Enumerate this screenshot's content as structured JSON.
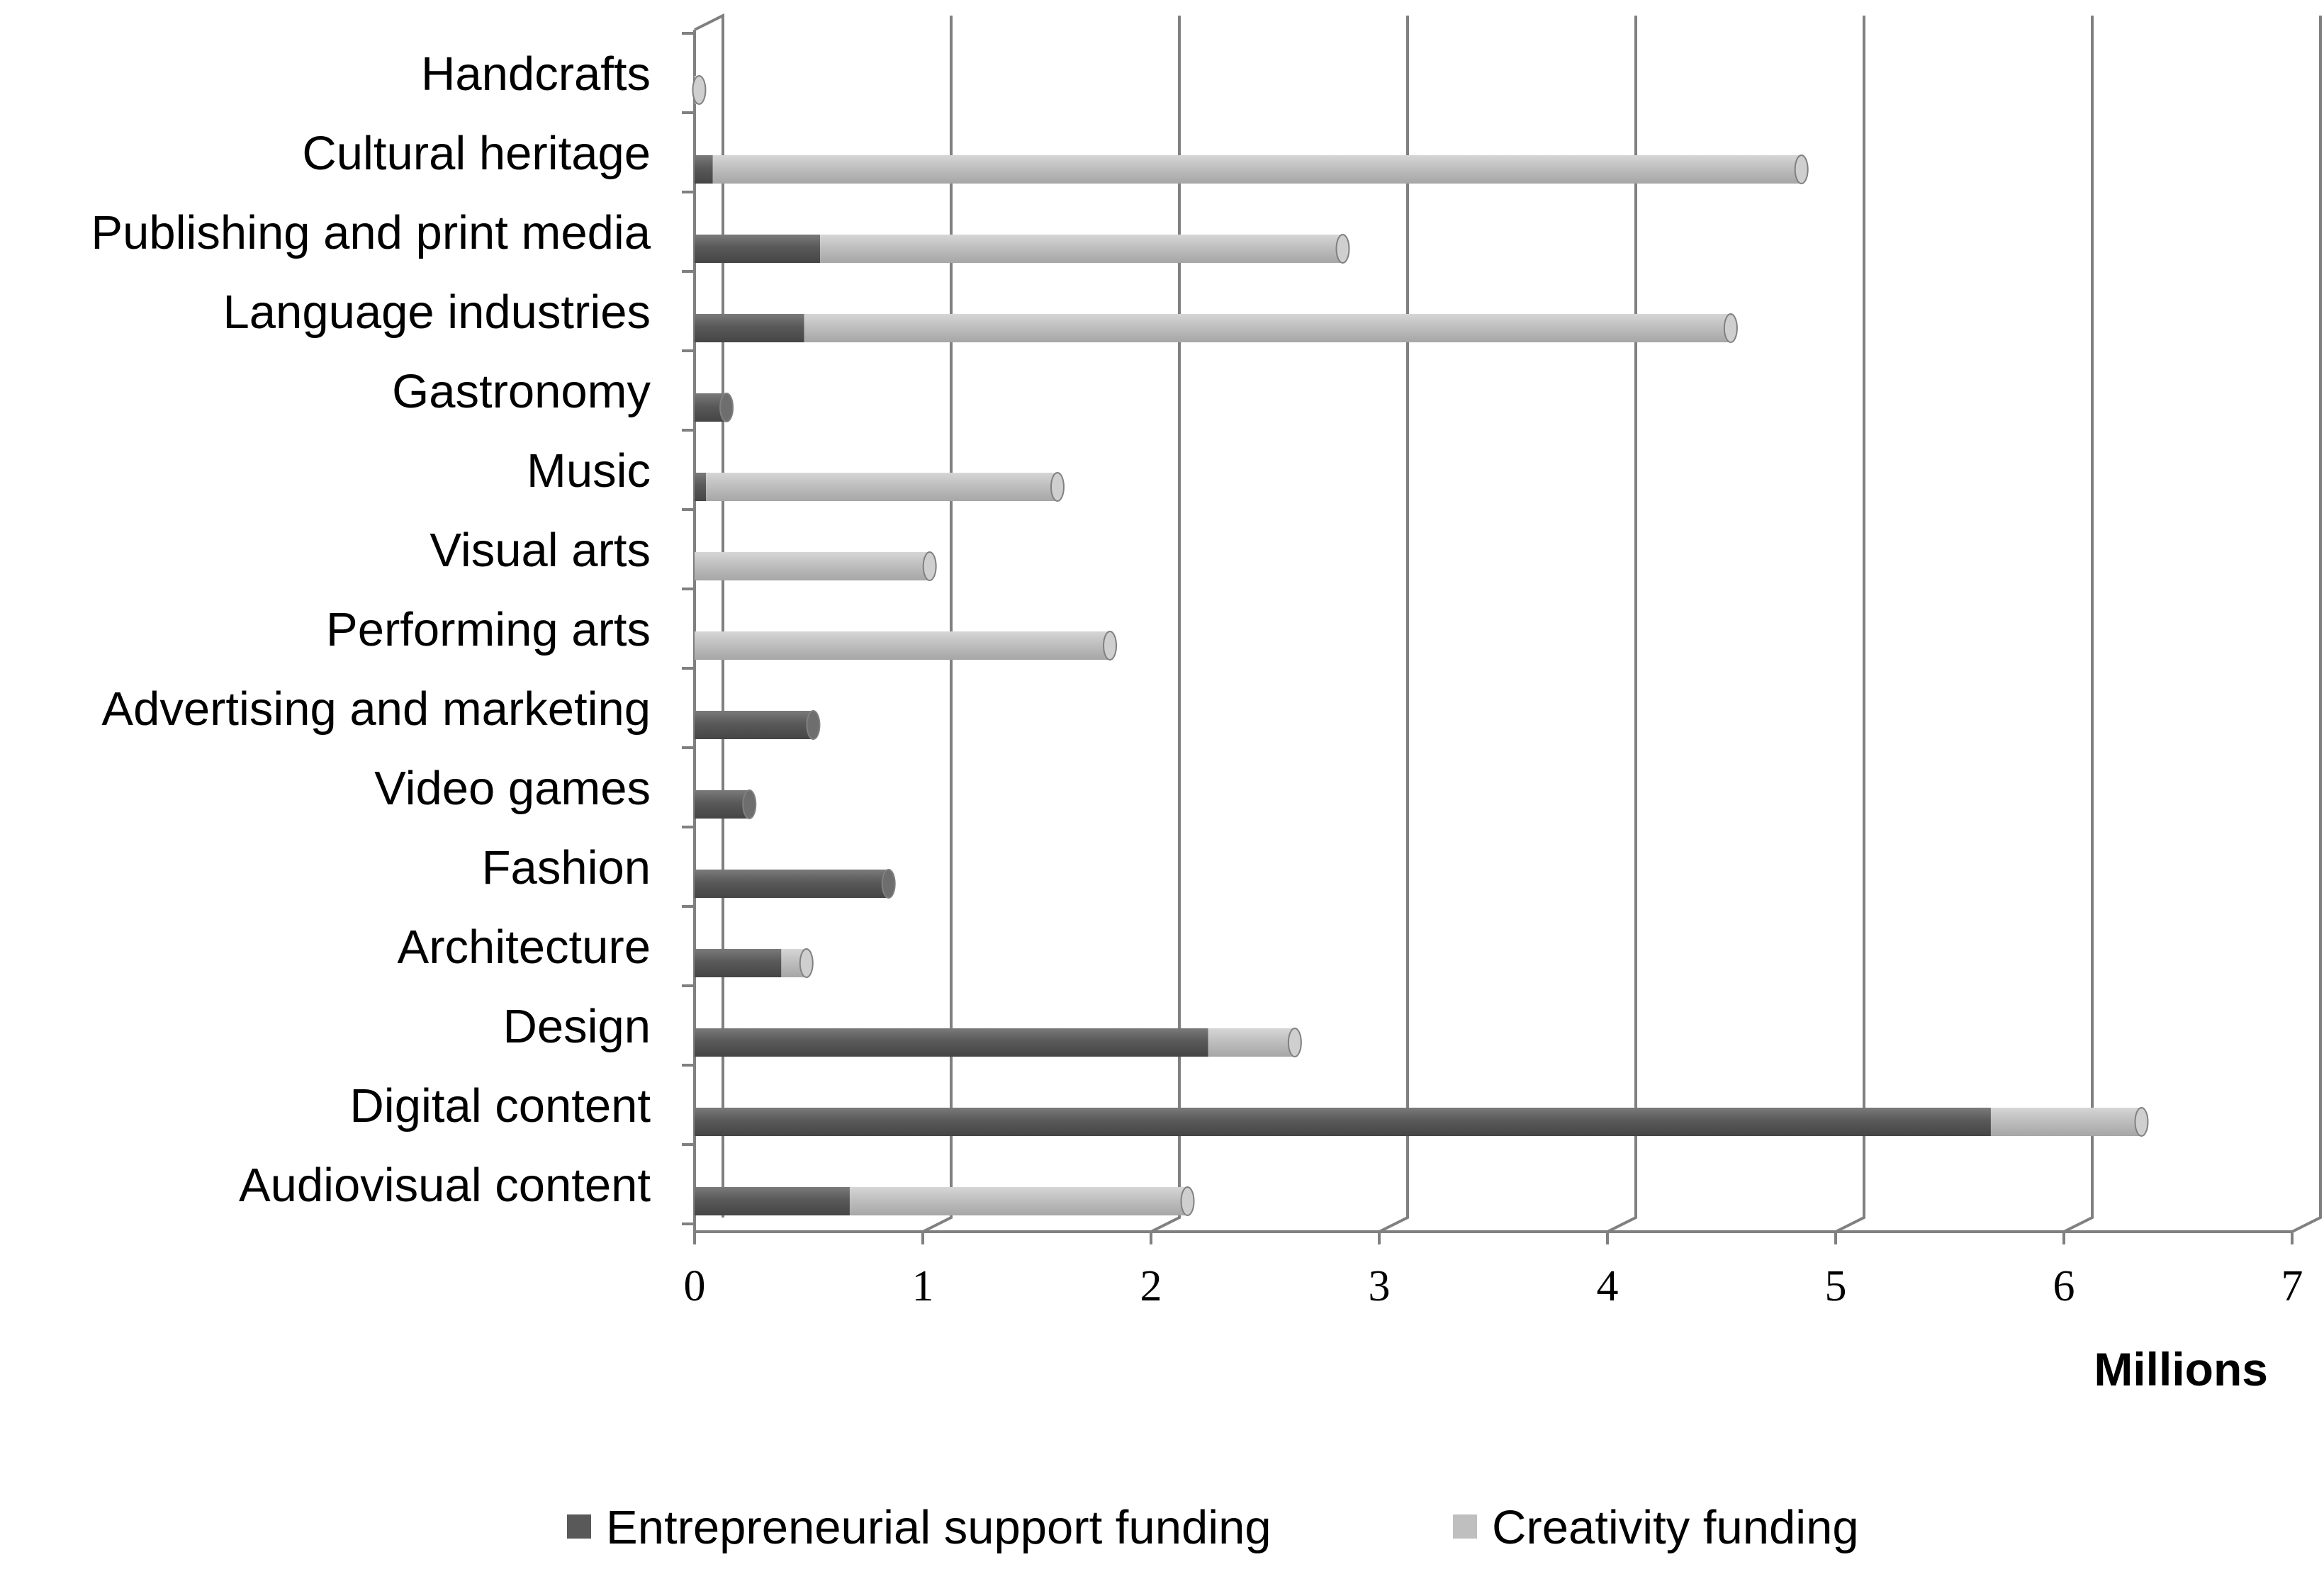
{
  "chart_data": {
    "type": "bar",
    "orientation": "horizontal",
    "stacked": true,
    "categories": [
      "Handcrafts",
      "Cultural heritage",
      "Publishing and print media",
      "Language industries",
      "Gastronomy",
      "Music",
      "Visual arts",
      "Performing arts",
      "Advertising and marketing",
      "Video games",
      "Fashion",
      "Architecture",
      "Design",
      "Digital content",
      "Audiovisual content"
    ],
    "series": [
      {
        "name": "Entrepreneurial support funding",
        "color": "#595959",
        "values": [
          0.0,
          0.08,
          0.55,
          0.48,
          0.14,
          0.05,
          0.0,
          0.0,
          0.52,
          0.24,
          0.85,
          0.38,
          2.25,
          5.68,
          0.68
        ]
      },
      {
        "name": "Creativity funding",
        "color": "#bfbfbf",
        "values": [
          0.02,
          4.77,
          2.29,
          4.06,
          0.0,
          1.54,
          1.03,
          1.82,
          0.0,
          0.0,
          0.0,
          0.11,
          0.38,
          0.66,
          1.48
        ]
      }
    ],
    "x_ticks": [
      "0",
      "1",
      "2",
      "3",
      "4",
      "5",
      "6",
      "7"
    ],
    "xlim": [
      0,
      7
    ],
    "xlabel": "Millions",
    "ylabel": "",
    "title": "",
    "grid": true,
    "legend": "bottom"
  }
}
